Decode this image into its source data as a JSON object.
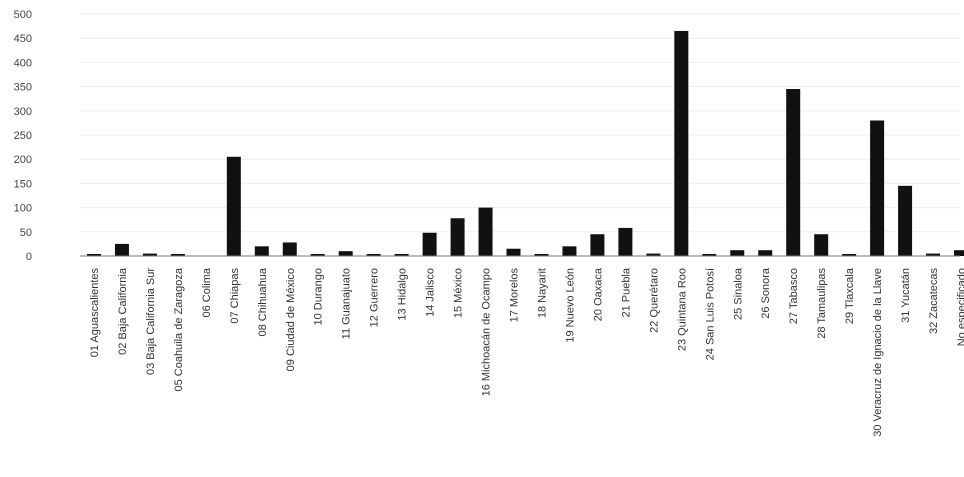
{
  "chart_data": {
    "type": "bar",
    "title": "",
    "xlabel": "",
    "ylabel": "",
    "ylim": [
      0,
      500
    ],
    "yticks": [
      0,
      50,
      100,
      150,
      200,
      250,
      300,
      350,
      400,
      450,
      500
    ],
    "grid": false,
    "legend": "none",
    "bar_color": "#111111",
    "categories": [
      "01 Aguascalientes",
      "02 Baja California",
      "03 Baja California Sur",
      "05 Coahuila de Zaragoza",
      "06 Colima",
      "07 Chiapas",
      "08 Chihuahua",
      "09 Ciudad de México",
      "10 Durango",
      "11 Guanajuato",
      "12 Guerrero",
      "13 Hidalgo",
      "14 Jalisco",
      "15 México",
      "16 Michoacán de Ocampo",
      "17 Morelos",
      "18 Nayarit",
      "19 Nuevo León",
      "20 Oaxaca",
      "21 Puebla",
      "22 Querétaro",
      "23 Quintana Roo",
      "24 San Luis Potosí",
      "25 Sinaloa",
      "26 Sonora",
      "27 Tabasco",
      "28 Tamaulipas",
      "29 Tlaxcala",
      "30 Veracruz de Ignacio de la Llave",
      "31 Yucatán",
      "32 Zacatecas",
      "No especificado"
    ],
    "values": [
      1,
      25,
      5,
      3,
      0,
      205,
      20,
      28,
      3,
      10,
      4,
      3,
      48,
      78,
      100,
      15,
      2,
      20,
      45,
      58,
      5,
      465,
      4,
      12,
      12,
      345,
      45,
      3,
      280,
      145,
      5,
      12
    ]
  }
}
